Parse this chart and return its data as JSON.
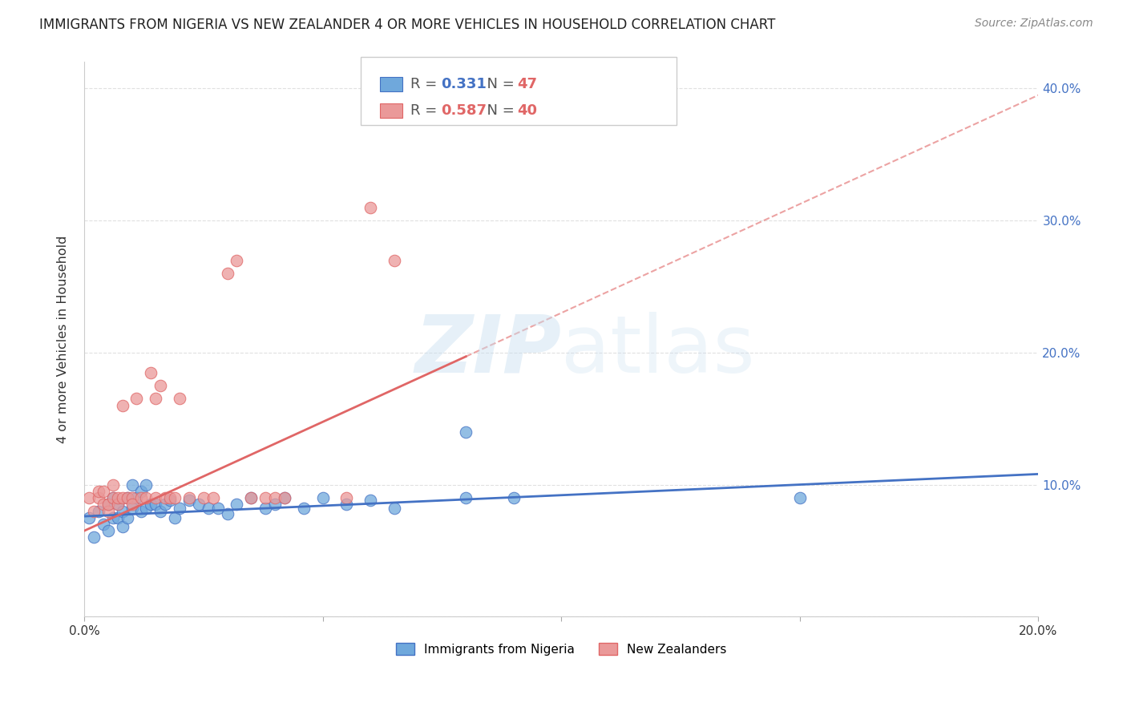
{
  "title": "IMMIGRANTS FROM NIGERIA VS NEW ZEALANDER 4 OR MORE VEHICLES IN HOUSEHOLD CORRELATION CHART",
  "source": "Source: ZipAtlas.com",
  "ylabel": "4 or more Vehicles in Household",
  "watermark": "ZIPatlas",
  "legend1_r": "0.331",
  "legend1_n": "47",
  "legend2_r": "0.587",
  "legend2_n": "40",
  "legend1_label": "Immigrants from Nigeria",
  "legend2_label": "New Zealanders",
  "xmin": 0.0,
  "xmax": 0.2,
  "ymin": 0.0,
  "ymax": 0.42,
  "color_nigeria": "#6fa8dc",
  "color_nz": "#ea9999",
  "color_nigeria_line": "#4472c4",
  "color_nz_line": "#e06666",
  "nigeria_line_x0": 0.0,
  "nigeria_line_y0": 0.076,
  "nigeria_line_x1": 0.2,
  "nigeria_line_y1": 0.108,
  "nz_line_x0": 0.0,
  "nz_line_y0": 0.065,
  "nz_line_x1": 0.2,
  "nz_line_y1": 0.395,
  "nigeria_scatter_x": [
    0.001,
    0.002,
    0.003,
    0.004,
    0.005,
    0.005,
    0.006,
    0.006,
    0.007,
    0.007,
    0.008,
    0.008,
    0.009,
    0.009,
    0.01,
    0.01,
    0.011,
    0.012,
    0.012,
    0.013,
    0.013,
    0.014,
    0.015,
    0.016,
    0.017,
    0.018,
    0.019,
    0.02,
    0.022,
    0.024,
    0.026,
    0.028,
    0.03,
    0.032,
    0.035,
    0.038,
    0.04,
    0.042,
    0.046,
    0.05,
    0.055,
    0.06,
    0.065,
    0.08,
    0.09,
    0.15,
    0.08
  ],
  "nigeria_scatter_y": [
    0.075,
    0.06,
    0.08,
    0.07,
    0.085,
    0.065,
    0.09,
    0.075,
    0.085,
    0.075,
    0.08,
    0.068,
    0.09,
    0.075,
    0.1,
    0.082,
    0.09,
    0.095,
    0.08,
    0.1,
    0.082,
    0.085,
    0.085,
    0.08,
    0.085,
    0.088,
    0.075,
    0.082,
    0.088,
    0.085,
    0.082,
    0.082,
    0.078,
    0.085,
    0.09,
    0.082,
    0.085,
    0.09,
    0.082,
    0.09,
    0.085,
    0.088,
    0.082,
    0.09,
    0.09,
    0.09,
    0.14
  ],
  "nz_scatter_x": [
    0.001,
    0.002,
    0.003,
    0.003,
    0.004,
    0.004,
    0.005,
    0.005,
    0.006,
    0.006,
    0.007,
    0.007,
    0.008,
    0.008,
    0.009,
    0.01,
    0.01,
    0.011,
    0.012,
    0.013,
    0.014,
    0.015,
    0.015,
    0.016,
    0.017,
    0.018,
    0.019,
    0.02,
    0.022,
    0.025,
    0.027,
    0.03,
    0.032,
    0.035,
    0.038,
    0.04,
    0.042,
    0.055,
    0.06,
    0.065
  ],
  "nz_scatter_y": [
    0.09,
    0.08,
    0.09,
    0.095,
    0.085,
    0.095,
    0.08,
    0.085,
    0.09,
    0.1,
    0.085,
    0.09,
    0.16,
    0.09,
    0.09,
    0.09,
    0.085,
    0.165,
    0.09,
    0.09,
    0.185,
    0.09,
    0.165,
    0.175,
    0.09,
    0.09,
    0.09,
    0.165,
    0.09,
    0.09,
    0.09,
    0.26,
    0.27,
    0.09,
    0.09,
    0.09,
    0.09,
    0.09,
    0.31,
    0.27
  ],
  "background_color": "#ffffff",
  "grid_color": "#e0e0e0"
}
